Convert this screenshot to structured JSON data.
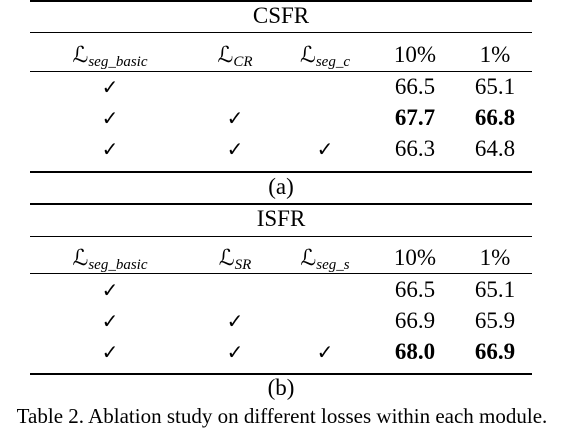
{
  "tables": [
    {
      "title": "CSFR",
      "headers": [
        {
          "script": "ℒ",
          "sub": "seg_basic"
        },
        {
          "script": "ℒ",
          "sub": "CR"
        },
        {
          "script": "ℒ",
          "sub": "seg_c"
        },
        {
          "text": "10%"
        },
        {
          "text": "1%"
        }
      ],
      "rows": [
        {
          "checks": [
            "✓",
            "",
            ""
          ],
          "v10": "66.5",
          "v1": "65.1",
          "bold": false
        },
        {
          "checks": [
            "✓",
            "✓",
            ""
          ],
          "v10": "67.7",
          "v1": "66.8",
          "bold": true
        },
        {
          "checks": [
            "✓",
            "✓",
            "✓"
          ],
          "v10": "66.3",
          "v1": "64.8",
          "bold": false
        }
      ],
      "label": "(a)"
    },
    {
      "title": "ISFR",
      "headers": [
        {
          "script": "ℒ",
          "sub": "seg_basic"
        },
        {
          "script": "ℒ",
          "sub": "SR"
        },
        {
          "script": "ℒ",
          "sub": "seg_s"
        },
        {
          "text": "10%"
        },
        {
          "text": "1%"
        }
      ],
      "rows": [
        {
          "checks": [
            "✓",
            "",
            ""
          ],
          "v10": "66.5",
          "v1": "65.1",
          "bold": false
        },
        {
          "checks": [
            "✓",
            "✓",
            ""
          ],
          "v10": "66.9",
          "v1": "65.9",
          "bold": false
        },
        {
          "checks": [
            "✓",
            "✓",
            "✓"
          ],
          "v10": "68.0",
          "v1": "66.9",
          "bold": true
        }
      ],
      "label": "(b)"
    }
  ],
  "caption": "Table 2. Ablation study on different losses within each module."
}
